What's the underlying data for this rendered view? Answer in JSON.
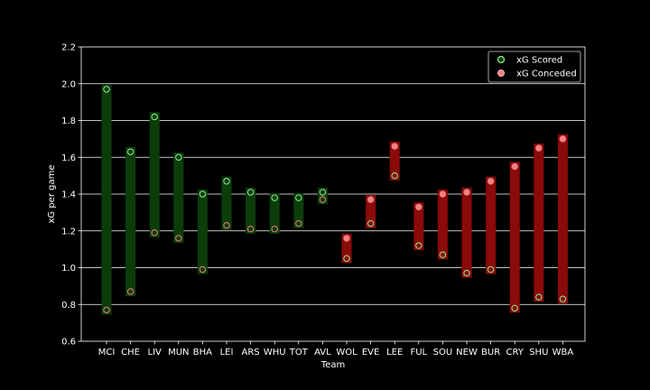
{
  "chart_data": {
    "type": "range",
    "xlabel": "Team",
    "ylabel": "xG per game",
    "ylim": [
      0.6,
      2.2
    ],
    "yticks": [
      "0.6",
      "0.8",
      "1.0",
      "1.2",
      "1.4",
      "1.6",
      "1.8",
      "2.0",
      "2.2"
    ],
    "grid": "horizontal",
    "legend_position": "top-right",
    "categories": [
      "MCI",
      "CHE",
      "LIV",
      "MUN",
      "BHA",
      "LEI",
      "ARS",
      "WHU",
      "TOT",
      "AVL",
      "WOL",
      "EVE",
      "LEE",
      "FUL",
      "SOU",
      "NEW",
      "BUR",
      "CRY",
      "SHU",
      "WBA"
    ],
    "series": [
      {
        "name": "xG Scored",
        "color": "#90ee90",
        "values": [
          1.97,
          1.63,
          1.82,
          1.6,
          1.4,
          1.47,
          1.41,
          1.38,
          1.38,
          1.41,
          1.05,
          1.24,
          1.5,
          1.12,
          1.07,
          0.97,
          0.99,
          0.78,
          0.84,
          0.83
        ]
      },
      {
        "name": "xG Conceded",
        "color": "#f08080",
        "values": [
          0.77,
          0.87,
          1.19,
          1.16,
          0.99,
          1.23,
          1.21,
          1.21,
          1.24,
          1.37,
          1.16,
          1.37,
          1.66,
          1.33,
          1.4,
          1.41,
          1.47,
          1.55,
          1.65,
          1.7
        ]
      }
    ],
    "bar_colors": {
      "positive": "#0b3d0b",
      "negative": "#8b0a0a"
    }
  }
}
